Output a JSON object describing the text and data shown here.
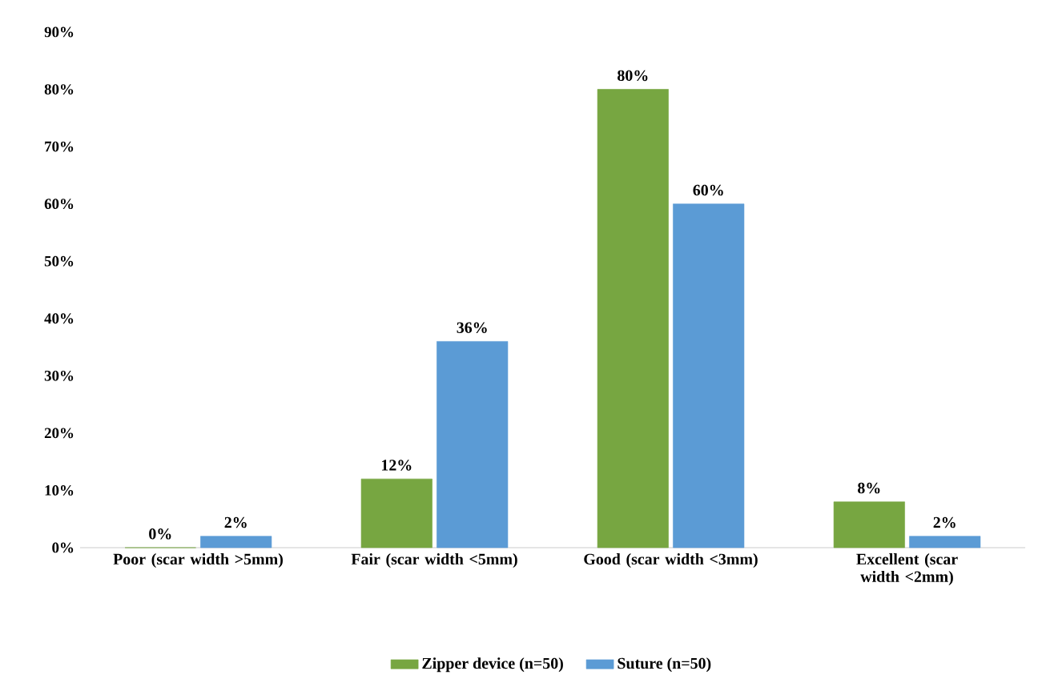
{
  "chart_data": {
    "type": "bar",
    "categories": [
      "Poor (scar width >5mm)",
      "Fair (scar width <5mm)",
      "Good (scar width <3mm)",
      "Excellent (scar width <2mm)"
    ],
    "series": [
      {
        "name": "Zipper device (n=50)",
        "color": "#77a641",
        "values": [
          0,
          12,
          80,
          8
        ],
        "value_labels": [
          "0%",
          "12%",
          "80%",
          "8%"
        ]
      },
      {
        "name": "Suture (n=50)",
        "color": "#5b9bd5",
        "values": [
          2,
          36,
          60,
          2
        ],
        "value_labels": [
          "2%",
          "36%",
          "60%",
          "2%"
        ]
      }
    ],
    "ylim": [
      0,
      90
    ],
    "yticks": [
      {
        "value": 0,
        "label": "0%"
      },
      {
        "value": 10,
        "label": "10%"
      },
      {
        "value": 20,
        "label": "20%"
      },
      {
        "value": 30,
        "label": "30%"
      },
      {
        "value": 40,
        "label": "40%"
      },
      {
        "value": 50,
        "label": "50%"
      },
      {
        "value": 60,
        "label": "60%"
      },
      {
        "value": 70,
        "label": "70%"
      },
      {
        "value": 80,
        "label": "80%"
      },
      {
        "value": 90,
        "label": "90%"
      }
    ],
    "grid": false,
    "legend": "bottom"
  }
}
